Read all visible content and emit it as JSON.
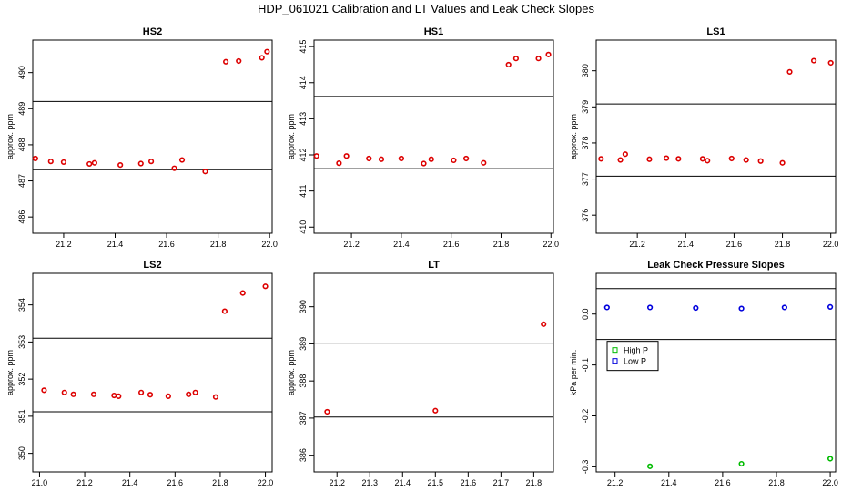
{
  "figure_title": "HDP_061021  Calibration and LT Values and Leak Check Slopes",
  "colors": {
    "points": "#dd0000",
    "high_p": "#00bb00",
    "low_p": "#0000dd",
    "axis": "#000000"
  },
  "chart_data": [
    {
      "type": "scatter",
      "title": "HS2",
      "ylabel": "approx. ppm",
      "xlim": [
        21.08,
        22.01
      ],
      "ylim": [
        485.55,
        490.9
      ],
      "xticks": [
        21.2,
        21.4,
        21.6,
        21.8,
        22.0
      ],
      "xtick_labels": [
        "21.2",
        "21.4",
        "21.6",
        "21.8",
        "22.0"
      ],
      "yticks": [
        486,
        487,
        488,
        489,
        490
      ],
      "ytick_labels": [
        "486",
        "487",
        "488",
        "489",
        "490"
      ],
      "hlines": [
        487.31,
        489.2
      ],
      "series": [
        {
          "name": "values",
          "color": "#dd0000",
          "x": [
            21.09,
            21.15,
            21.2,
            21.3,
            21.32,
            21.42,
            21.5,
            21.54,
            21.63,
            21.66,
            21.75,
            21.83,
            21.88,
            21.97,
            21.99
          ],
          "y": [
            487.62,
            487.54,
            487.52,
            487.47,
            487.5,
            487.44,
            487.48,
            487.54,
            487.35,
            487.58,
            487.26,
            490.3,
            490.32,
            490.41,
            490.58
          ]
        }
      ]
    },
    {
      "type": "scatter",
      "title": "HS1",
      "ylabel": "approx. ppm",
      "xlim": [
        21.05,
        22.01
      ],
      "ylim": [
        409.83,
        415.18
      ],
      "xticks": [
        21.2,
        21.4,
        21.6,
        21.8,
        22.0
      ],
      "xtick_labels": [
        "21.2",
        "21.4",
        "21.6",
        "21.8",
        "22.0"
      ],
      "yticks": [
        410,
        411,
        412,
        413,
        414,
        415
      ],
      "ytick_labels": [
        "410",
        "411",
        "412",
        "413",
        "414",
        "415"
      ],
      "hlines": [
        411.62,
        413.62
      ],
      "series": [
        {
          "name": "values",
          "color": "#dd0000",
          "x": [
            21.06,
            21.15,
            21.18,
            21.27,
            21.32,
            21.4,
            21.49,
            21.52,
            21.61,
            21.66,
            21.73,
            21.83,
            21.86,
            21.95,
            21.99
          ],
          "y": [
            411.97,
            411.77,
            411.97,
            411.9,
            411.88,
            411.9,
            411.76,
            411.88,
            411.85,
            411.9,
            411.78,
            414.5,
            414.67,
            414.67,
            414.78
          ]
        }
      ]
    },
    {
      "type": "scatter",
      "title": "LS1",
      "ylabel": "approx. ppm",
      "xlim": [
        21.03,
        22.02
      ],
      "ylim": [
        375.5,
        380.85
      ],
      "xticks": [
        21.2,
        21.4,
        21.6,
        21.8,
        22.0
      ],
      "xtick_labels": [
        "21.2",
        "21.4",
        "21.6",
        "21.8",
        "22.0"
      ],
      "yticks": [
        376,
        377,
        378,
        379,
        380
      ],
      "ytick_labels": [
        "376",
        "377",
        "378",
        "379",
        "380"
      ],
      "hlines": [
        377.08,
        379.08
      ],
      "series": [
        {
          "name": "values",
          "color": "#dd0000",
          "x": [
            21.05,
            21.13,
            21.15,
            21.25,
            21.32,
            21.37,
            21.47,
            21.49,
            21.59,
            21.65,
            21.71,
            21.8,
            21.83,
            21.93,
            22.0
          ],
          "y": [
            377.56,
            377.53,
            377.69,
            377.55,
            377.58,
            377.56,
            377.56,
            377.51,
            377.57,
            377.53,
            377.5,
            377.45,
            379.97,
            380.28,
            380.22
          ]
        }
      ]
    },
    {
      "type": "scatter",
      "title": "LS2",
      "ylabel": "approx. ppm",
      "xlim": [
        20.97,
        22.03
      ],
      "ylim": [
        349.5,
        354.85
      ],
      "xticks": [
        21.0,
        21.2,
        21.4,
        21.6,
        21.8,
        22.0
      ],
      "xtick_labels": [
        "21.0",
        "21.2",
        "21.4",
        "21.6",
        "21.8",
        "22.0"
      ],
      "yticks": [
        350,
        351,
        352,
        353,
        354
      ],
      "ytick_labels": [
        "350",
        "351",
        "352",
        "353",
        "354"
      ],
      "hlines": [
        351.12,
        353.1
      ],
      "series": [
        {
          "name": "values",
          "color": "#dd0000",
          "x": [
            21.02,
            21.11,
            21.15,
            21.24,
            21.33,
            21.35,
            21.45,
            21.49,
            21.57,
            21.66,
            21.69,
            21.78,
            21.82,
            21.9,
            22.0
          ],
          "y": [
            351.7,
            351.64,
            351.59,
            351.59,
            351.56,
            351.54,
            351.64,
            351.58,
            351.54,
            351.59,
            351.64,
            351.52,
            353.83,
            354.32,
            354.5
          ]
        }
      ]
    },
    {
      "type": "scatter",
      "title": "LT",
      "ylabel": "approx. ppm",
      "xlim": [
        21.13,
        21.86
      ],
      "ylim": [
        385.55,
        390.9
      ],
      "xticks": [
        21.2,
        21.3,
        21.4,
        21.5,
        21.6,
        21.7,
        21.8
      ],
      "xtick_labels": [
        "21.2",
        "21.3",
        "21.4",
        "21.5",
        "21.6",
        "21.7",
        "21.8"
      ],
      "yticks": [
        386,
        387,
        388,
        389,
        390
      ],
      "ytick_labels": [
        "386",
        "387",
        "388",
        "389",
        "390"
      ],
      "hlines": [
        387.03,
        389.02
      ],
      "series": [
        {
          "name": "values",
          "color": "#dd0000",
          "x": [
            21.17,
            21.5,
            21.83
          ],
          "y": [
            387.17,
            387.2,
            389.53
          ]
        }
      ]
    },
    {
      "type": "scatter",
      "title": "Leak Check Pressure Slopes",
      "ylabel": "kPa per min.",
      "xlim": [
        21.13,
        22.02
      ],
      "ylim": [
        -0.31,
        0.08
      ],
      "xticks": [
        21.2,
        21.4,
        21.6,
        21.8,
        22.0
      ],
      "xtick_labels": [
        "21.2",
        "21.4",
        "21.6",
        "21.8",
        "22.0"
      ],
      "yticks": [
        -0.3,
        -0.2,
        -0.1,
        0.0
      ],
      "ytick_labels": [
        "-0.3",
        "-0.2",
        "-0.1",
        "0.0"
      ],
      "hlines": [
        -0.05,
        0.05
      ],
      "legend": {
        "position": "left",
        "entries": [
          "High P",
          "Low P"
        ]
      },
      "series": [
        {
          "name": "High P",
          "color": "#00bb00",
          "x": [
            21.33,
            21.67,
            22.0
          ],
          "y": [
            -0.299,
            -0.294,
            -0.284
          ]
        },
        {
          "name": "Low P",
          "color": "#0000dd",
          "x": [
            21.17,
            21.33,
            21.5,
            21.67,
            21.83,
            22.0
          ],
          "y": [
            0.013,
            0.013,
            0.012,
            0.011,
            0.013,
            0.014
          ]
        }
      ]
    }
  ]
}
